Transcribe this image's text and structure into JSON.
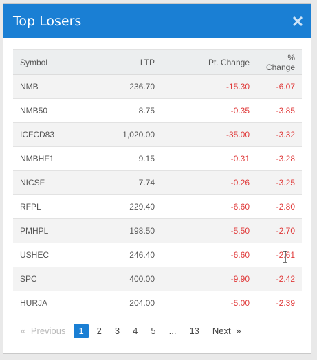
{
  "modal": {
    "title": "Top Losers",
    "close_icon": "close-icon"
  },
  "table": {
    "headers": {
      "symbol": "Symbol",
      "ltp": "LTP",
      "pt_change": "Pt. Change",
      "pct_change": "% Change"
    },
    "rows": [
      {
        "symbol": "NMB",
        "ltp": "236.70",
        "pt_change": "-15.30",
        "pct_change": "-6.07"
      },
      {
        "symbol": "NMB50",
        "ltp": "8.75",
        "pt_change": "-0.35",
        "pct_change": "-3.85"
      },
      {
        "symbol": "ICFCD83",
        "ltp": "1,020.00",
        "pt_change": "-35.00",
        "pct_change": "-3.32"
      },
      {
        "symbol": "NMBHF1",
        "ltp": "9.15",
        "pt_change": "-0.31",
        "pct_change": "-3.28"
      },
      {
        "symbol": "NICSF",
        "ltp": "7.74",
        "pt_change": "-0.26",
        "pct_change": "-3.25"
      },
      {
        "symbol": "RFPL",
        "ltp": "229.40",
        "pt_change": "-6.60",
        "pct_change": "-2.80"
      },
      {
        "symbol": "PMHPL",
        "ltp": "198.50",
        "pt_change": "-5.50",
        "pct_change": "-2.70"
      },
      {
        "symbol": "USHEC",
        "ltp": "246.40",
        "pt_change": "-6.60",
        "pct_change": "-2.61"
      },
      {
        "symbol": "SPC",
        "ltp": "400.00",
        "pt_change": "-9.90",
        "pct_change": "-2.42"
      },
      {
        "symbol": "HURJA",
        "ltp": "204.00",
        "pt_change": "-5.00",
        "pct_change": "-2.39"
      }
    ]
  },
  "pagination": {
    "prev_arrow": "«",
    "prev_label": "Previous",
    "pages": [
      "1",
      "2",
      "3",
      "4",
      "5"
    ],
    "active_page": "1",
    "ellipsis": "...",
    "last_page": "13",
    "next_label": "Next",
    "next_arrow": "»"
  },
  "colors": {
    "header_bg": "#1a7fd4",
    "negative": "#e03b3b",
    "active_page_bg": "#1a7fd4"
  }
}
